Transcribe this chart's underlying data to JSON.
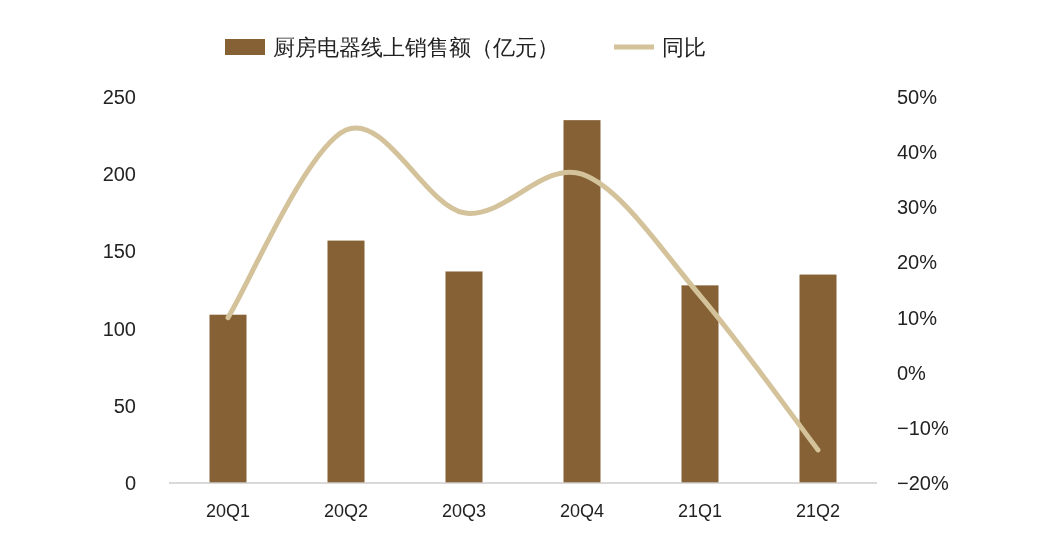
{
  "chart_data": {
    "type": "bar",
    "categories": [
      "20Q1",
      "20Q2",
      "20Q3",
      "20Q4",
      "21Q1",
      "21Q2"
    ],
    "series": [
      {
        "name": "厨房电器线上销售额（亿元）",
        "color": "#856135",
        "values": [
          109,
          157,
          137,
          235,
          128,
          135
        ]
      },
      {
        "name": "同比",
        "type": "line",
        "axis": "y2",
        "color": "#d3c29a",
        "values": [
          10,
          44,
          29,
          36,
          14,
          -14
        ]
      }
    ],
    "ylim": [
      0,
      250
    ],
    "yticks": [
      0,
      50,
      100,
      150,
      200,
      250
    ],
    "y2lim": [
      -20,
      50
    ],
    "y2ticks": [
      {
        "value": -20,
        "label": "−20%"
      },
      {
        "value": -10,
        "label": "−10%"
      },
      {
        "value": 0,
        "label": "0%"
      },
      {
        "value": 10,
        "label": "10%"
      },
      {
        "value": 20,
        "label": "20%"
      },
      {
        "value": 30,
        "label": "30%"
      },
      {
        "value": 40,
        "label": "40%"
      },
      {
        "value": 50,
        "label": "50%"
      }
    ],
    "legend": "top",
    "grid": false,
    "marker": "none"
  }
}
